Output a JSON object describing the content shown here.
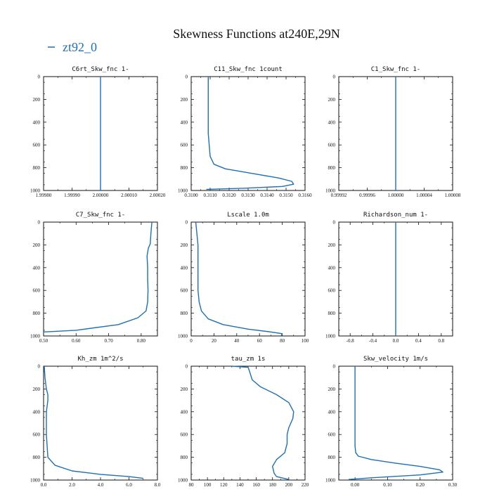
{
  "figure_title": "Skewness Functions at240E,29N",
  "legend": {
    "label": "zt92_0",
    "color": "#1f6fb5"
  },
  "chart_data": [
    {
      "type": "line",
      "title": "C6rt_Skw_fnc   1-",
      "xlim": [
        1.9998,
        2.0002
      ],
      "xticks": [
        "1.99980",
        "1.99990",
        "2.00000",
        "2.00010",
        "2.00020"
      ],
      "ylim": [
        0,
        1000
      ],
      "yticks": [
        "0",
        "200",
        "400",
        "600",
        "800",
        "1000"
      ],
      "series": [
        {
          "name": "zt92_0",
          "x": [
            2.0,
            2.0
          ],
          "y": [
            0,
            1000
          ]
        }
      ]
    },
    {
      "type": "line",
      "title": "C11_Skw_fnc   1count",
      "xlim": [
        0.31,
        0.316
      ],
      "xticks": [
        "0.3100",
        "0.3110",
        "0.3120",
        "0.3130",
        "0.3140",
        "0.3150",
        "0.3160"
      ],
      "ylim": [
        0,
        1000
      ],
      "yticks": [
        "0",
        "200",
        "400",
        "600",
        "800",
        "1000"
      ],
      "series": [
        {
          "name": "zt92_0",
          "x": [
            0.3109,
            0.3109,
            0.3109,
            0.311,
            0.3112,
            0.3118,
            0.3132,
            0.3146,
            0.3153,
            0.3154,
            0.3148,
            0.3128,
            0.3108
          ],
          "y": [
            0,
            200,
            500,
            700,
            770,
            810,
            850,
            890,
            920,
            945,
            965,
            980,
            990
          ]
        }
      ]
    },
    {
      "type": "line",
      "title": "C1_Skw_fnc   1-",
      "xlim": [
        0.99992,
        1.00008
      ],
      "xticks": [
        "0.99992",
        "0.99996",
        "1.00000",
        "1.00004",
        "1.00008"
      ],
      "ylim": [
        0,
        1000
      ],
      "yticks": [
        "0",
        "200",
        "400",
        "600",
        "800",
        "1000"
      ],
      "series": [
        {
          "name": "zt92_0",
          "x": [
            1.0,
            1.0
          ],
          "y": [
            0,
            1000
          ]
        }
      ]
    },
    {
      "type": "line",
      "title": "C7_Skw_fnc   1-",
      "xlim": [
        0.5,
        0.85
      ],
      "xticks": [
        "0.50",
        "0.60",
        "0.70",
        "0.80"
      ],
      "ylim": [
        0,
        1000
      ],
      "yticks": [
        "0",
        "200",
        "400",
        "600",
        "800",
        "1000"
      ],
      "series": [
        {
          "name": "zt92_0",
          "x": [
            0.833,
            0.83,
            0.828,
            0.822,
            0.818,
            0.82,
            0.82,
            0.821,
            0.82,
            0.815,
            0.79,
            0.73,
            0.6,
            0.5
          ],
          "y": [
            0,
            100,
            190,
            230,
            300,
            400,
            500,
            600,
            700,
            780,
            840,
            900,
            950,
            965
          ]
        }
      ]
    },
    {
      "type": "line",
      "title": "Lscale   1.0m",
      "xlim": [
        0,
        100
      ],
      "xticks": [
        "0",
        "20",
        "40",
        "60",
        "80",
        "100"
      ],
      "ylim": [
        0,
        1000
      ],
      "yticks": [
        "0",
        "200",
        "400",
        "600",
        "800",
        "1000"
      ],
      "series": [
        {
          "name": "zt92_0",
          "x": [
            4,
            5,
            6,
            6,
            6,
            7,
            9,
            15,
            28,
            50,
            70,
            80,
            79
          ],
          "y": [
            0,
            100,
            200,
            400,
            600,
            700,
            780,
            850,
            900,
            940,
            965,
            980,
            1000
          ]
        }
      ]
    },
    {
      "type": "line",
      "title": "Richardson_num   1-",
      "xlim": [
        -1,
        1
      ],
      "xticks": [
        "-0.8",
        "-0.4",
        "0.0",
        "0.4",
        "0.8"
      ],
      "ylim": [
        0,
        1000
      ],
      "yticks": [
        "0",
        "200",
        "400",
        "600",
        "800",
        "1000"
      ],
      "series": [
        {
          "name": "zt92_0",
          "x": [
            0,
            0
          ],
          "y": [
            0,
            1000
          ]
        }
      ]
    },
    {
      "type": "line",
      "title": "Kh_zm   1m^2/s",
      "xlim": [
        0,
        8
      ],
      "xticks": [
        "0.0",
        "2.0",
        "4.0",
        "6.0",
        "8.0"
      ],
      "ylim": [
        0,
        1000
      ],
      "yticks": [
        "0",
        "200",
        "400",
        "600",
        "800",
        "1000"
      ],
      "series": [
        {
          "name": "zt92_0",
          "x": [
            0.05,
            0.1,
            0.2,
            0.3,
            0.3,
            0.2,
            0.2,
            0.3,
            0.8,
            2.0,
            4.0,
            6.0,
            7.0
          ],
          "y": [
            0,
            100,
            200,
            250,
            300,
            400,
            600,
            800,
            870,
            920,
            950,
            970,
            985
          ]
        }
      ]
    },
    {
      "type": "line",
      "title": "tau_zm   1s",
      "xlim": [
        80,
        220
      ],
      "xticks": [
        "80",
        "100",
        "120",
        "140",
        "160",
        "180",
        "200",
        "220"
      ],
      "ylim": [
        0,
        1000
      ],
      "yticks": [
        "0",
        "200",
        "400",
        "600",
        "800",
        "1000"
      ],
      "series": [
        {
          "name": "zt92_0",
          "x": [
            130,
            150,
            152,
            155,
            165,
            185,
            200,
            206,
            205,
            200,
            198,
            198,
            195,
            185,
            180,
            182,
            185,
            200
          ],
          "y": [
            0,
            10,
            50,
            120,
            180,
            250,
            320,
            400,
            460,
            540,
            600,
            680,
            760,
            820,
            880,
            940,
            970,
            995
          ]
        }
      ]
    },
    {
      "type": "line",
      "title": "Skw_velocity   1m/s",
      "xlim": [
        -0.05,
        0.3
      ],
      "xticks": [
        "0.00",
        "0.10",
        "0.20",
        "0.30"
      ],
      "ylim": [
        0,
        1000
      ],
      "yticks": [
        "0",
        "200",
        "400",
        "600",
        "800",
        "1000"
      ],
      "series": [
        {
          "name": "zt92_0",
          "x": [
            0.0,
            0.0,
            0.0,
            0.0,
            0.002,
            0.01,
            0.05,
            0.12,
            0.2,
            0.26,
            0.27,
            0.2,
            0.05,
            -0.02
          ],
          "y": [
            0,
            200,
            400,
            700,
            760,
            790,
            820,
            850,
            880,
            910,
            930,
            955,
            980,
            995
          ]
        }
      ]
    }
  ]
}
